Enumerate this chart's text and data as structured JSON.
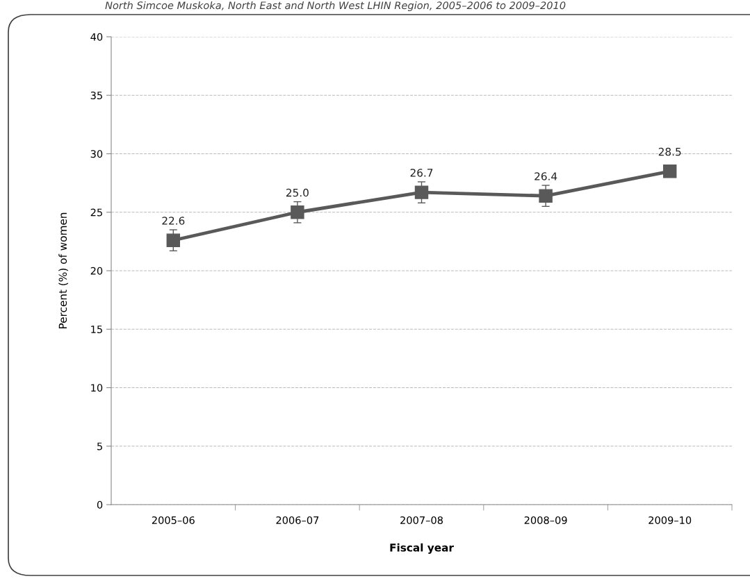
{
  "chart_data": {
    "type": "line",
    "title": "North Simcoe Muskoka, North East and North West LHIN Region, 2005–2006 to 2009–2010",
    "xlabel": "Fiscal year",
    "ylabel": "Percent (%) of women",
    "categories": [
      "2005–06",
      "2006–07",
      "2007–08",
      "2008–09",
      "2009–10"
    ],
    "series": [
      {
        "color": "#595959",
        "values": [
          22.6,
          25.0,
          26.7,
          26.4,
          28.5
        ],
        "errors": [
          0.9,
          0.9,
          0.9,
          0.9,
          0.4
        ],
        "value_labels": [
          "22.6",
          "25.0",
          "26.7",
          "26.4",
          "28.5"
        ]
      }
    ],
    "ylim": [
      0,
      40
    ],
    "yticks": [
      0,
      5,
      10,
      15,
      20,
      25,
      30,
      35,
      40
    ],
    "grid": "y",
    "marker": "square",
    "line_style": "solid"
  }
}
